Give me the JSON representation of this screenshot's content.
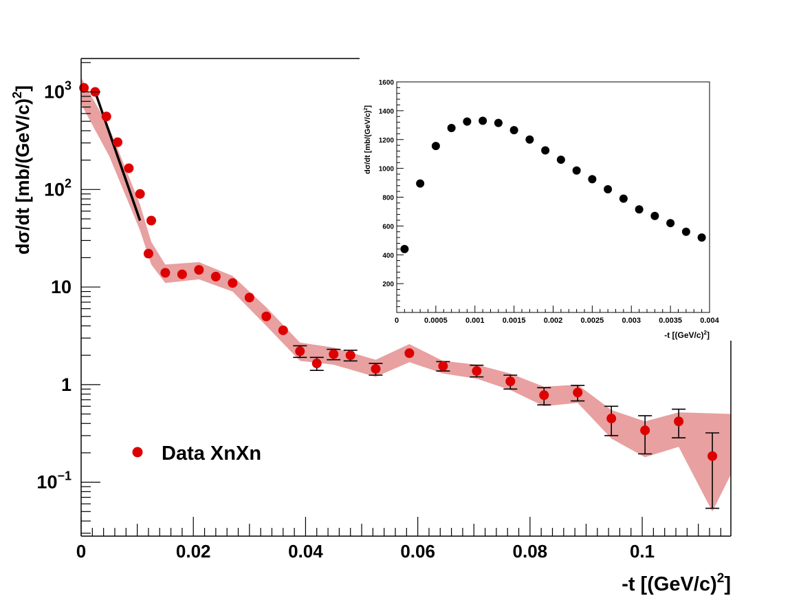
{
  "chart_data": [
    {
      "id": "main",
      "type": "scatter",
      "xlabel": "-t [(GeV/c)",
      "xlabel_sup": "2",
      "xlabel_tail": "]",
      "ylabel": "dσ/dt [mb/(GeV/c)",
      "ylabel_sup": "2",
      "ylabel_tail": "]",
      "xlim": [
        0,
        0.1158
      ],
      "ylim": [
        0.028,
        2200
      ],
      "yscale": "log",
      "x_tick_labels": [
        {
          "x": 0,
          "label": "0"
        },
        {
          "x": 0.02,
          "label": "0.02"
        },
        {
          "x": 0.04,
          "label": "0.04"
        },
        {
          "x": 0.06,
          "label": "0.06"
        },
        {
          "x": 0.08,
          "label": "0.08"
        },
        {
          "x": 0.1,
          "label": "0.1"
        }
      ],
      "y_tick_labels": [
        {
          "y": 1000,
          "base": "10",
          "sup": "3"
        },
        {
          "y": 100,
          "base": "10",
          "sup": "2"
        },
        {
          "y": 10,
          "base": "10",
          "sup": ""
        },
        {
          "y": 1,
          "base": "1",
          "sup": ""
        },
        {
          "y": 0.1,
          "base": "10",
          "sup": "−1"
        }
      ],
      "legend": {
        "label": "Data  XnXn",
        "color": "#dd0000",
        "position": "bottom-left"
      },
      "colors": {
        "points": "#dd0000",
        "band": "#e8a0a0",
        "fit": "#000000"
      },
      "series": [
        {
          "name": "Data  XnXn",
          "points": [
            {
              "x": 0.0005,
              "y": 1100
            },
            {
              "x": 0.0025,
              "y": 1000
            },
            {
              "x": 0.0045,
              "y": 560
            },
            {
              "x": 0.0065,
              "y": 305
            },
            {
              "x": 0.0085,
              "y": 165
            },
            {
              "x": 0.0105,
              "y": 90
            },
            {
              "x": 0.0125,
              "y": 48
            },
            {
              "x": 0.012,
              "y": 22
            },
            {
              "x": 0.015,
              "y": 14
            },
            {
              "x": 0.018,
              "y": 13.5
            },
            {
              "x": 0.021,
              "y": 15
            },
            {
              "x": 0.024,
              "y": 12.8
            },
            {
              "x": 0.027,
              "y": 11
            },
            {
              "x": 0.03,
              "y": 7.8
            },
            {
              "x": 0.033,
              "y": 5
            },
            {
              "x": 0.036,
              "y": 3.6
            },
            {
              "x": 0.039,
              "y": 2.2,
              "err": [
                1.9,
                2.5
              ]
            },
            {
              "x": 0.042,
              "y": 1.65,
              "err": [
                1.4,
                1.9
              ]
            },
            {
              "x": 0.045,
              "y": 2.05,
              "err": [
                1.8,
                2.3
              ]
            },
            {
              "x": 0.048,
              "y": 2.0,
              "err": [
                1.75,
                2.25
              ]
            },
            {
              "x": 0.0525,
              "y": 1.45,
              "err": [
                1.25,
                1.65
              ]
            },
            {
              "x": 0.0585,
              "y": 2.1
            },
            {
              "x": 0.0645,
              "y": 1.55,
              "err": [
                1.38,
                1.72
              ]
            },
            {
              "x": 0.0705,
              "y": 1.38,
              "err": [
                1.2,
                1.58
              ]
            },
            {
              "x": 0.0765,
              "y": 1.08,
              "err": [
                0.9,
                1.25
              ]
            },
            {
              "x": 0.0825,
              "y": 0.78,
              "err": [
                0.62,
                0.93
              ]
            },
            {
              "x": 0.0885,
              "y": 0.83,
              "err": [
                0.68,
                0.98
              ]
            },
            {
              "x": 0.0945,
              "y": 0.45,
              "err": [
                0.3,
                0.6
              ]
            },
            {
              "x": 0.1005,
              "y": 0.34,
              "err": [
                0.195,
                0.48
              ]
            },
            {
              "x": 0.1065,
              "y": 0.42,
              "err": [
                0.285,
                0.56
              ]
            },
            {
              "x": 0.1125,
              "y": 0.185,
              "err": [
                0.054,
                0.32
              ]
            }
          ]
        }
      ],
      "band_upper": [
        {
          "x": 0.0,
          "y": 1400
        },
        {
          "x": 0.005,
          "y": 430
        },
        {
          "x": 0.0105,
          "y": 70
        },
        {
          "x": 0.0125,
          "y": 29
        },
        {
          "x": 0.015,
          "y": 17
        },
        {
          "x": 0.021,
          "y": 18
        },
        {
          "x": 0.027,
          "y": 13
        },
        {
          "x": 0.033,
          "y": 6.2
        },
        {
          "x": 0.039,
          "y": 2.7
        },
        {
          "x": 0.045,
          "y": 2.4
        },
        {
          "x": 0.0525,
          "y": 1.8
        },
        {
          "x": 0.0585,
          "y": 2.6
        },
        {
          "x": 0.0645,
          "y": 1.75
        },
        {
          "x": 0.0705,
          "y": 1.6
        },
        {
          "x": 0.0765,
          "y": 1.3
        },
        {
          "x": 0.0825,
          "y": 0.95
        },
        {
          "x": 0.0885,
          "y": 1.0
        },
        {
          "x": 0.0945,
          "y": 0.55
        },
        {
          "x": 0.1005,
          "y": 0.42
        },
        {
          "x": 0.1065,
          "y": 0.52
        },
        {
          "x": 0.1158,
          "y": 0.5
        }
      ],
      "band_lower": [
        {
          "x": 0.0,
          "y": 750
        },
        {
          "x": 0.005,
          "y": 220
        },
        {
          "x": 0.0105,
          "y": 38
        },
        {
          "x": 0.0125,
          "y": 17
        },
        {
          "x": 0.015,
          "y": 11
        },
        {
          "x": 0.021,
          "y": 12
        },
        {
          "x": 0.027,
          "y": 9
        },
        {
          "x": 0.033,
          "y": 4
        },
        {
          "x": 0.039,
          "y": 1.75
        },
        {
          "x": 0.045,
          "y": 1.6
        },
        {
          "x": 0.0525,
          "y": 1.2
        },
        {
          "x": 0.0585,
          "y": 1.7
        },
        {
          "x": 0.0645,
          "y": 1.3
        },
        {
          "x": 0.0705,
          "y": 1.15
        },
        {
          "x": 0.0765,
          "y": 0.88
        },
        {
          "x": 0.0825,
          "y": 0.6
        },
        {
          "x": 0.0885,
          "y": 0.65
        },
        {
          "x": 0.0945,
          "y": 0.28
        },
        {
          "x": 0.1005,
          "y": 0.18
        },
        {
          "x": 0.1065,
          "y": 0.23
        },
        {
          "x": 0.1125,
          "y": 0.05
        },
        {
          "x": 0.1158,
          "y": 0.12
        }
      ],
      "fit_line": [
        {
          "x": 0.0025,
          "y": 1000
        },
        {
          "x": 0.0105,
          "y": 48
        }
      ]
    },
    {
      "id": "inset",
      "type": "scatter",
      "xlabel": "-t [(GeV/c)",
      "xlabel_sup": "2",
      "xlabel_tail": "]",
      "ylabel": "dσ/dt [mb/(GeV/c)",
      "ylabel_sup": "2",
      "ylabel_tail": "]",
      "xlim": [
        0,
        0.004
      ],
      "ylim": [
        0,
        1600
      ],
      "x_tick_labels": [
        {
          "x": 0,
          "label": "0"
        },
        {
          "x": 0.0005,
          "label": "0.0005"
        },
        {
          "x": 0.001,
          "label": "0.001"
        },
        {
          "x": 0.0015,
          "label": "0.0015"
        },
        {
          "x": 0.002,
          "label": "0.002"
        },
        {
          "x": 0.0025,
          "label": "0.0025"
        },
        {
          "x": 0.003,
          "label": "0.003"
        },
        {
          "x": 0.0035,
          "label": "0.0035"
        },
        {
          "x": 0.004,
          "label": "0.004"
        }
      ],
      "y_tick_labels": [
        {
          "y": 200,
          "label": "200"
        },
        {
          "y": 400,
          "label": "400"
        },
        {
          "y": 600,
          "label": "600"
        },
        {
          "y": 800,
          "label": "800"
        },
        {
          "y": 1000,
          "label": "1000"
        },
        {
          "y": 1200,
          "label": "1200"
        },
        {
          "y": 1400,
          "label": "1400"
        },
        {
          "y": 1600,
          "label": "1600"
        }
      ],
      "colors": {
        "points": "#000000"
      },
      "series": [
        {
          "points": [
            {
              "x": 0.0001,
              "y": 440
            },
            {
              "x": 0.0003,
              "y": 895
            },
            {
              "x": 0.0005,
              "y": 1155
            },
            {
              "x": 0.0007,
              "y": 1280
            },
            {
              "x": 0.0009,
              "y": 1325
            },
            {
              "x": 0.0011,
              "y": 1330
            },
            {
              "x": 0.0013,
              "y": 1315
            },
            {
              "x": 0.0015,
              "y": 1265
            },
            {
              "x": 0.0017,
              "y": 1200
            },
            {
              "x": 0.0019,
              "y": 1125
            },
            {
              "x": 0.0021,
              "y": 1060
            },
            {
              "x": 0.0023,
              "y": 985
            },
            {
              "x": 0.0025,
              "y": 925
            },
            {
              "x": 0.0027,
              "y": 855
            },
            {
              "x": 0.0029,
              "y": 790
            },
            {
              "x": 0.0031,
              "y": 715
            },
            {
              "x": 0.0033,
              "y": 670
            },
            {
              "x": 0.0035,
              "y": 620
            },
            {
              "x": 0.0037,
              "y": 560
            },
            {
              "x": 0.0039,
              "y": 520
            }
          ]
        }
      ]
    }
  ]
}
